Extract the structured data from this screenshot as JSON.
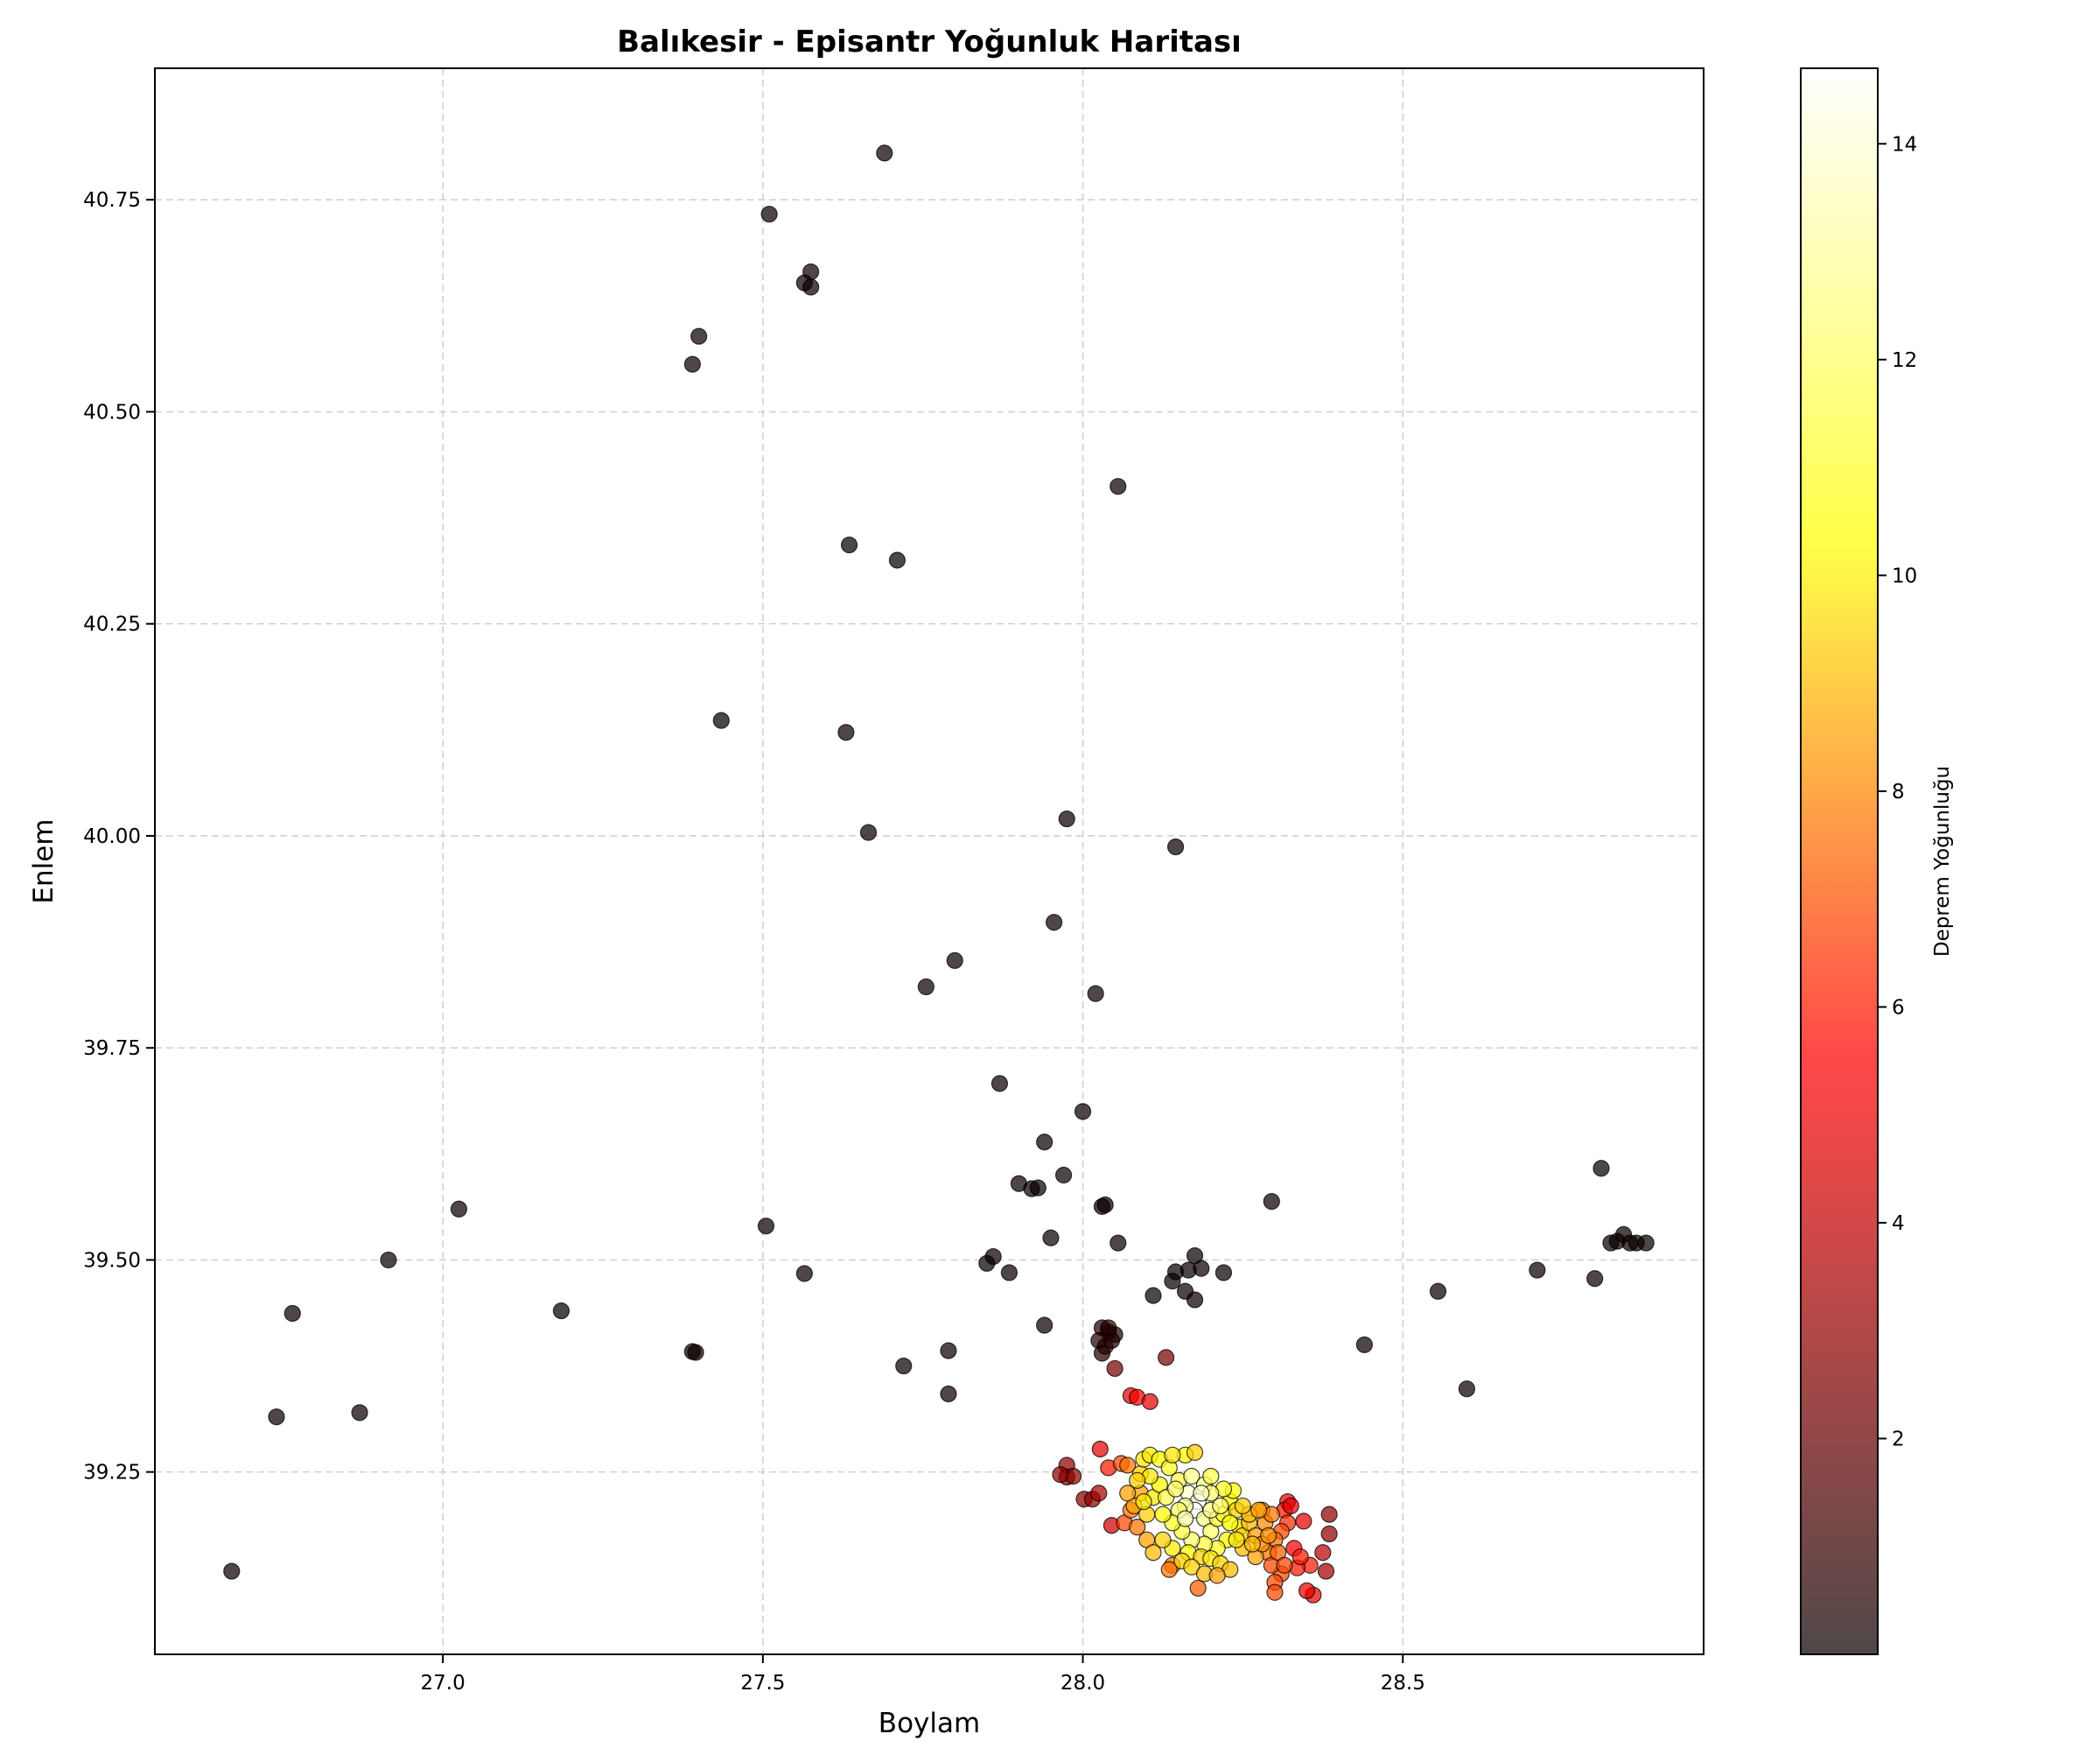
{
  "chart_data": {
    "type": "scatter",
    "title": "Balıkesir - Episantr Yoğunluk Haritası",
    "xlabel": "Boylam",
    "ylabel": "Enlem",
    "xlim": [
      26.55,
      28.97
    ],
    "ylim": [
      39.035,
      40.905
    ],
    "xticks": [
      27.0,
      27.5,
      28.0,
      28.5
    ],
    "xtick_labels": [
      "27.0",
      "27.5",
      "28.0",
      "28.5"
    ],
    "yticks": [
      39.25,
      39.5,
      39.75,
      40.0,
      40.25,
      40.5,
      40.75
    ],
    "ytick_labels": [
      "39.25",
      "39.50",
      "39.75",
      "40.00",
      "40.25",
      "40.50",
      "40.75"
    ],
    "grid": true,
    "colormap": "hot",
    "colorbar": {
      "label": "Deprem Yoğunluğu",
      "range": [
        0,
        14.7
      ],
      "ticks": [
        2,
        4,
        6,
        8,
        10,
        12,
        14
      ],
      "tick_labels": [
        "2",
        "4",
        "6",
        "8",
        "10",
        "12",
        "14"
      ]
    },
    "points_columns": [
      "x",
      "y",
      "density"
    ],
    "points": [
      [
        27.69,
        40.805,
        0
      ],
      [
        27.51,
        40.733,
        0
      ],
      [
        27.575,
        40.665,
        0
      ],
      [
        27.565,
        40.652,
        0
      ],
      [
        27.575,
        40.647,
        0
      ],
      [
        27.4,
        40.589,
        0
      ],
      [
        27.39,
        40.556,
        0
      ],
      [
        28.055,
        40.412,
        0
      ],
      [
        27.635,
        40.343,
        0
      ],
      [
        27.71,
        40.325,
        0
      ],
      [
        27.435,
        40.136,
        0
      ],
      [
        27.63,
        40.122,
        0
      ],
      [
        27.665,
        40.004,
        0
      ],
      [
        27.975,
        40.02,
        0
      ],
      [
        28.145,
        39.987,
        0
      ],
      [
        27.955,
        39.898,
        0
      ],
      [
        27.8,
        39.853,
        0
      ],
      [
        27.755,
        39.822,
        0
      ],
      [
        28.02,
        39.814,
        0
      ],
      [
        27.87,
        39.708,
        0
      ],
      [
        28.0,
        39.675,
        0
      ],
      [
        27.94,
        39.639,
        0
      ],
      [
        27.97,
        39.6,
        0
      ],
      [
        27.9,
        39.59,
        0
      ],
      [
        27.92,
        39.584,
        0
      ],
      [
        27.93,
        39.585,
        0
      ],
      [
        28.03,
        39.563,
        0
      ],
      [
        28.035,
        39.565,
        0
      ],
      [
        28.295,
        39.569,
        0
      ],
      [
        28.81,
        39.608,
        0
      ],
      [
        27.505,
        39.54,
        0
      ],
      [
        27.95,
        39.526,
        0
      ],
      [
        28.055,
        39.52,
        0
      ],
      [
        27.86,
        39.504,
        0
      ],
      [
        27.85,
        39.496,
        0
      ],
      [
        27.565,
        39.484,
        0
      ],
      [
        27.885,
        39.485,
        0
      ],
      [
        28.175,
        39.505,
        0
      ],
      [
        28.185,
        39.49,
        0
      ],
      [
        28.22,
        39.485,
        0
      ],
      [
        28.145,
        39.486,
        0
      ],
      [
        28.165,
        39.488,
        0
      ],
      [
        28.14,
        39.475,
        0
      ],
      [
        28.16,
        39.463,
        0
      ],
      [
        28.11,
        39.458,
        0
      ],
      [
        28.175,
        39.453,
        0
      ],
      [
        28.555,
        39.463,
        0
      ],
      [
        28.71,
        39.488,
        0
      ],
      [
        28.8,
        39.478,
        0
      ],
      [
        28.825,
        39.52,
        0
      ],
      [
        28.835,
        39.522,
        0
      ],
      [
        28.845,
        39.53,
        0
      ],
      [
        28.855,
        39.52,
        0
      ],
      [
        28.865,
        39.52,
        0
      ],
      [
        28.88,
        39.52,
        0
      ],
      [
        27.025,
        39.56,
        0
      ],
      [
        26.915,
        39.5,
        0
      ],
      [
        27.185,
        39.44,
        0
      ],
      [
        26.765,
        39.437,
        0
      ],
      [
        26.74,
        39.315,
        0
      ],
      [
        26.87,
        39.32,
        0
      ],
      [
        26.67,
        39.133,
        0
      ],
      [
        27.39,
        39.392,
        0
      ],
      [
        27.395,
        39.391,
        0
      ],
      [
        27.72,
        39.375,
        0
      ],
      [
        27.79,
        39.393,
        0
      ],
      [
        27.79,
        39.342,
        0
      ],
      [
        27.94,
        39.423,
        0
      ],
      [
        28.44,
        39.4,
        0
      ],
      [
        28.6,
        39.348,
        0
      ],
      [
        28.03,
        39.42,
        0.6
      ],
      [
        28.04,
        39.415,
        0.6
      ],
      [
        28.025,
        39.405,
        0.6
      ],
      [
        28.05,
        39.412,
        0.6
      ],
      [
        28.035,
        39.398,
        0.6
      ],
      [
        28.045,
        39.405,
        0.6
      ],
      [
        28.03,
        39.39,
        0.6
      ],
      [
        28.04,
        39.42,
        0.6
      ],
      [
        28.05,
        39.372,
        2.5
      ],
      [
        28.13,
        39.385,
        2.5
      ],
      [
        28.075,
        39.34,
        5
      ],
      [
        28.085,
        39.338,
        5.5
      ],
      [
        28.105,
        39.333,
        5
      ],
      [
        28.027,
        39.277,
        5
      ],
      [
        27.975,
        39.258,
        3
      ],
      [
        27.975,
        39.244,
        3
      ],
      [
        27.985,
        39.245,
        3
      ],
      [
        27.965,
        39.247,
        3
      ],
      [
        28.002,
        39.218,
        3
      ],
      [
        28.015,
        39.218,
        3
      ],
      [
        28.025,
        39.225,
        3.5
      ],
      [
        28.04,
        39.255,
        6
      ],
      [
        28.045,
        39.187,
        4.5
      ],
      [
        28.065,
        39.19,
        7
      ],
      [
        28.06,
        39.26,
        7
      ],
      [
        28.07,
        39.258,
        8
      ],
      [
        28.385,
        39.2,
        3
      ],
      [
        28.385,
        39.177,
        3
      ],
      [
        28.38,
        39.133,
        3.5
      ],
      [
        28.375,
        39.155,
        4
      ],
      [
        28.36,
        39.105,
        5
      ],
      [
        28.35,
        39.11,
        5
      ],
      [
        28.345,
        39.192,
        5
      ],
      [
        28.355,
        39.14,
        6
      ],
      [
        28.335,
        39.137,
        6
      ],
      [
        28.33,
        39.16,
        5.5
      ],
      [
        28.34,
        39.15,
        6
      ],
      [
        28.32,
        39.215,
        5
      ],
      [
        28.315,
        39.205,
        6
      ],
      [
        28.325,
        39.21,
        5
      ],
      [
        28.32,
        39.19,
        6.5
      ],
      [
        28.31,
        39.18,
        7
      ],
      [
        28.3,
        39.17,
        8
      ],
      [
        28.31,
        39.13,
        7
      ],
      [
        28.3,
        39.12,
        7
      ],
      [
        28.3,
        39.108,
        7
      ],
      [
        28.29,
        39.155,
        8
      ],
      [
        28.28,
        39.205,
        8
      ],
      [
        28.295,
        39.14,
        7
      ],
      [
        28.18,
        39.113,
        7.5
      ],
      [
        28.14,
        39.14,
        8
      ],
      [
        28.135,
        39.135,
        8
      ],
      [
        28.1,
        39.17,
        9
      ],
      [
        28.085,
        39.185,
        8
      ],
      [
        28.075,
        39.205,
        8
      ],
      [
        28.09,
        39.225,
        9
      ],
      [
        28.08,
        39.21,
        9
      ],
      [
        28.09,
        39.248,
        10
      ],
      [
        28.095,
        39.265,
        10.5
      ],
      [
        28.105,
        39.27,
        10.5
      ],
      [
        28.12,
        39.265,
        11
      ],
      [
        28.135,
        39.255,
        11.5
      ],
      [
        28.16,
        39.27,
        11
      ],
      [
        28.175,
        39.273,
        10
      ],
      [
        28.15,
        39.24,
        12
      ],
      [
        28.17,
        39.245,
        13
      ],
      [
        28.19,
        39.235,
        13
      ],
      [
        28.2,
        39.245,
        12
      ],
      [
        28.165,
        39.225,
        14
      ],
      [
        28.18,
        39.215,
        14.5
      ],
      [
        28.175,
        39.205,
        14.7
      ],
      [
        28.16,
        39.21,
        13
      ],
      [
        28.15,
        39.205,
        12.5
      ],
      [
        28.19,
        39.195,
        13
      ],
      [
        28.2,
        39.18,
        12.5
      ],
      [
        28.21,
        39.195,
        12
      ],
      [
        28.22,
        39.2,
        11.5
      ],
      [
        28.23,
        39.215,
        11
      ],
      [
        28.24,
        39.205,
        10
      ],
      [
        28.245,
        39.185,
        10.5
      ],
      [
        28.25,
        39.175,
        10
      ],
      [
        28.26,
        39.19,
        9.5
      ],
      [
        28.27,
        39.175,
        9
      ],
      [
        28.225,
        39.17,
        11
      ],
      [
        28.21,
        39.16,
        11.5
      ],
      [
        28.19,
        39.165,
        12
      ],
      [
        28.17,
        39.17,
        12.5
      ],
      [
        28.155,
        39.18,
        12
      ],
      [
        28.14,
        39.19,
        11.5
      ],
      [
        28.125,
        39.2,
        11
      ],
      [
        28.11,
        39.22,
        10.5
      ],
      [
        28.12,
        39.235,
        11
      ],
      [
        28.105,
        39.245,
        10.5
      ],
      [
        28.13,
        39.22,
        12
      ],
      [
        28.145,
        39.23,
        12.5
      ],
      [
        28.165,
        39.155,
        11
      ],
      [
        28.185,
        39.15,
        10
      ],
      [
        28.2,
        39.148,
        10.5
      ],
      [
        28.215,
        39.142,
        10
      ],
      [
        28.23,
        39.135,
        9.5
      ],
      [
        28.25,
        39.16,
        9.5
      ],
      [
        28.27,
        39.15,
        9
      ],
      [
        28.28,
        39.165,
        8.5
      ],
      [
        28.26,
        39.2,
        9.5
      ],
      [
        28.25,
        39.21,
        10
      ],
      [
        28.235,
        39.228,
        11
      ],
      [
        28.22,
        39.23,
        11.5
      ],
      [
        28.2,
        39.225,
        12.5
      ],
      [
        28.16,
        39.195,
        13.5
      ],
      [
        28.185,
        39.225,
        14
      ],
      [
        28.14,
        39.16,
        10.5
      ],
      [
        28.125,
        39.17,
        10
      ],
      [
        28.11,
        39.155,
        9.5
      ],
      [
        28.155,
        39.145,
        10
      ],
      [
        28.17,
        39.138,
        10
      ],
      [
        28.19,
        39.13,
        9.5
      ],
      [
        28.21,
        39.128,
        9
      ],
      [
        28.1,
        39.2,
        10
      ],
      [
        28.095,
        39.215,
        10.5
      ],
      [
        28.085,
        39.24,
        10
      ],
      [
        28.07,
        39.225,
        9
      ],
      [
        28.14,
        39.27,
        10.5
      ],
      [
        28.2,
        39.205,
        13
      ],
      [
        28.215,
        39.21,
        12.5
      ],
      [
        28.23,
        39.19,
        11
      ],
      [
        28.24,
        39.17,
        10.5
      ],
      [
        28.265,
        39.165,
        9.5
      ],
      [
        28.285,
        39.19,
        8.5
      ],
      [
        28.295,
        39.2,
        8
      ],
      [
        28.305,
        39.155,
        7.5
      ],
      [
        28.315,
        39.14,
        7
      ],
      [
        28.29,
        39.175,
        8.5
      ],
      [
        28.275,
        39.205,
        9
      ]
    ]
  }
}
